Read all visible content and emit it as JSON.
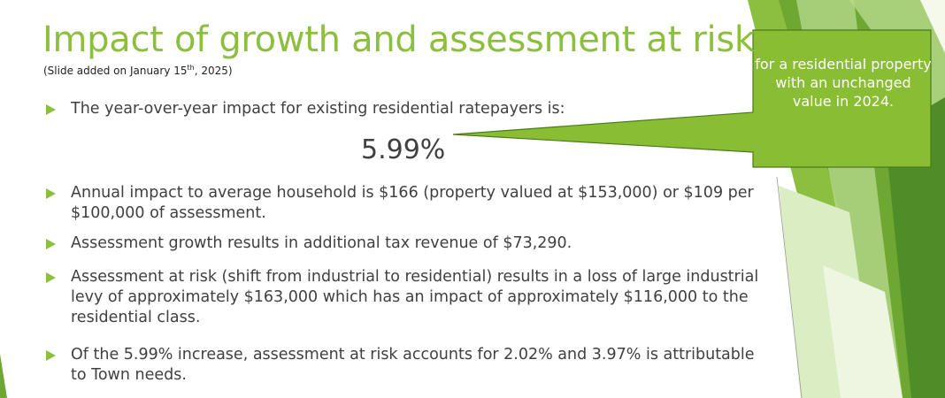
{
  "slide": {
    "title": "Impact of growth and assessment at risk",
    "subtitle_prefix": "(Slide added on January 15",
    "subtitle_sup": "th",
    "subtitle_suffix": ", 2025)",
    "big_figure": "5.99%",
    "callout": "for a residential property with an unchanged value in 2024.",
    "bullets": [
      "The year-over-year impact for existing residential ratepayers is:",
      "Annual impact to average household is $166 (property valued at $153,000) or $109 per $100,000 of assessment.",
      "Assessment growth results in additional tax revenue of $73,290.",
      "Assessment at risk (shift from industrial to residential) results in a loss of large industrial levy of approximately $163,000 which has an impact of approximately $116,000 to the residential class.",
      "Of the 5.99% increase, assessment at risk accounts for 2.02% and 3.97% is attributable to Town needs."
    ]
  },
  "colors": {
    "accent": "#8cbf3f",
    "callout_fill": "#88bd34",
    "text": "#404040"
  }
}
